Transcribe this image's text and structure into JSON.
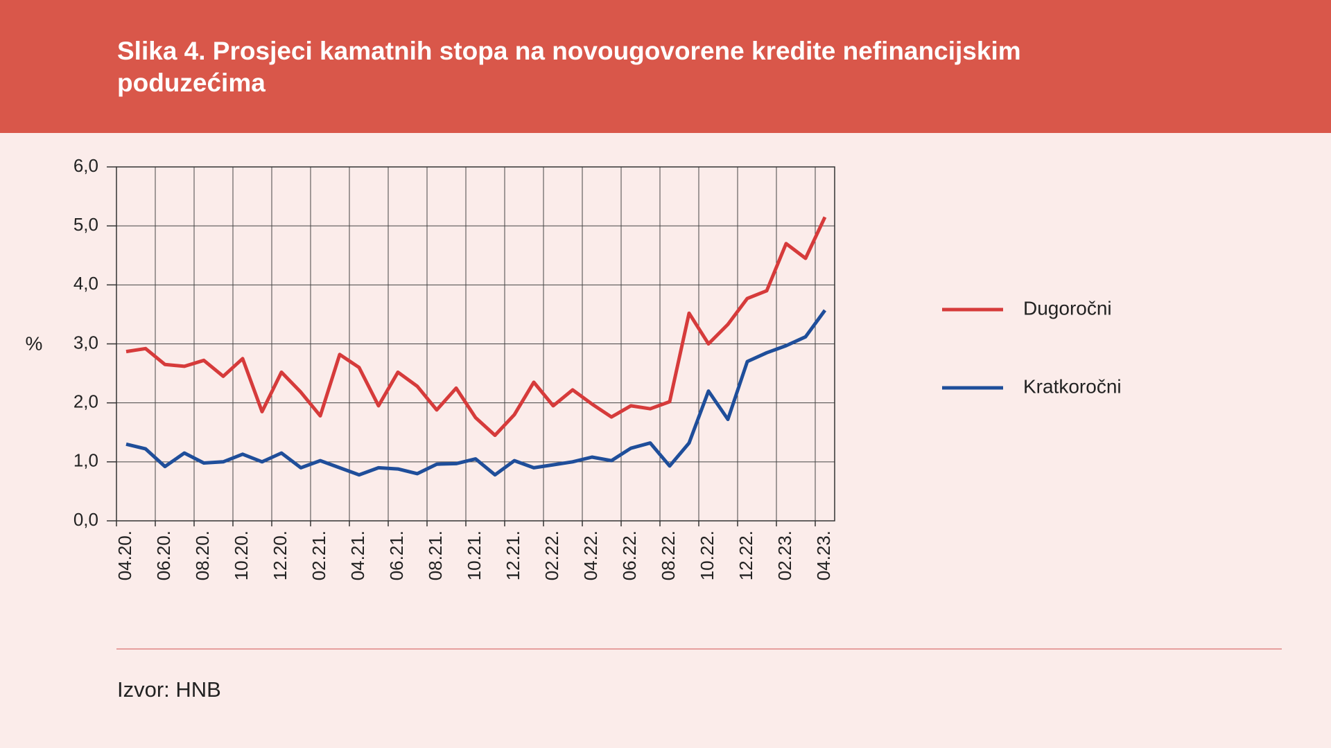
{
  "chart_data": {
    "type": "line",
    "title": "Slika 4. Prosjeci kamatnih stopa na novougovorene kredite nefinancijskim poduzećima",
    "ylabel": "%",
    "source": "Izvor: HNB",
    "categories": [
      "04.20.",
      null,
      "06.20.",
      null,
      "08.20.",
      null,
      "10.20.",
      null,
      "12.20.",
      null,
      "02.21.",
      null,
      "04.21.",
      null,
      "06.21.",
      null,
      "08.21.",
      null,
      "10.21.",
      null,
      "12.21.",
      null,
      "02.22.",
      null,
      "04.22.",
      null,
      "06.22.",
      null,
      "08.22.",
      null,
      "10.22.",
      null,
      "12.22.",
      null,
      "02.23.",
      null,
      "04.23."
    ],
    "series": [
      {
        "name": "Dugoročni",
        "color": "#d63b3b",
        "values": [
          2.87,
          2.92,
          2.65,
          2.62,
          2.72,
          2.45,
          2.75,
          1.85,
          2.52,
          2.18,
          1.78,
          2.82,
          2.6,
          1.95,
          2.52,
          2.28,
          1.88,
          2.25,
          1.75,
          1.45,
          1.8,
          2.35,
          1.95,
          2.22,
          1.98,
          1.76,
          1.95,
          1.9,
          2.02,
          3.52,
          3.0,
          3.33,
          3.77,
          3.9,
          4.7,
          4.45,
          5.15
        ]
      },
      {
        "name": "Kratkoročni",
        "color": "#1f4e9a",
        "values": [
          1.3,
          1.22,
          0.92,
          1.15,
          0.98,
          1.0,
          1.13,
          1.0,
          1.15,
          0.9,
          1.02,
          0.9,
          0.78,
          0.9,
          0.88,
          0.8,
          0.96,
          0.97,
          1.05,
          0.78,
          1.02,
          0.9,
          0.95,
          1.0,
          1.08,
          1.02,
          1.23,
          1.32,
          0.93,
          1.32,
          2.2,
          1.72,
          2.7,
          2.85,
          2.97,
          3.12,
          3.57
        ]
      }
    ],
    "ylim": [
      0,
      6
    ],
    "yticks": [
      {
        "value": 0,
        "label": "0,0"
      },
      {
        "value": 1,
        "label": "1,0"
      },
      {
        "value": 2,
        "label": "2,0"
      },
      {
        "value": 3,
        "label": "3,0"
      },
      {
        "value": 4,
        "label": "4,0"
      },
      {
        "value": 5,
        "label": "5,0"
      },
      {
        "value": 6,
        "label": "6,0"
      }
    ],
    "grid": true,
    "legend": "right"
  }
}
